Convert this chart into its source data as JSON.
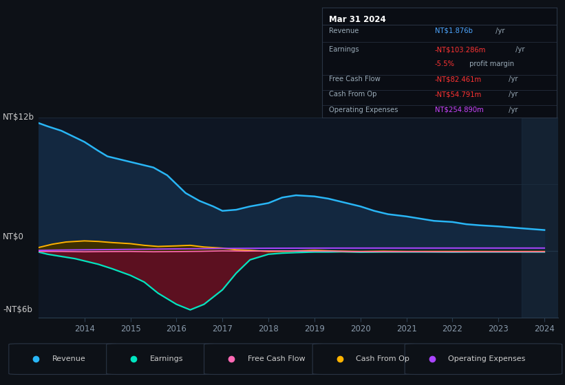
{
  "background_color": "#0d1117",
  "plot_bg_color": "#0e1623",
  "ylabel_top": "NT$12b",
  "ylabel_zero": "NT$0",
  "ylabel_bottom": "-NT$6b",
  "x_ticks": [
    2014,
    2015,
    2016,
    2017,
    2018,
    2019,
    2020,
    2021,
    2022,
    2023,
    2024
  ],
  "x_labels": [
    "2014",
    "2015",
    "2016",
    "2017",
    "2018",
    "2019",
    "2020",
    "2021",
    "2022",
    "2023",
    "2024"
  ],
  "ylim": [
    -6000000000.0,
    12000000000.0
  ],
  "xlim": [
    2013.0,
    2024.3
  ],
  "grid_lines": [
    12000000000.0,
    6000000000.0,
    0,
    -6000000000.0
  ],
  "info_box": {
    "date": "Mar 31 2024",
    "rows": [
      {
        "label": "Revenue",
        "value": "NT$1.876b",
        "suffix": " /yr",
        "color": "#4da6ff"
      },
      {
        "label": "Earnings",
        "value": "-NT$103.286m",
        "suffix": " /yr",
        "color": "#ff3333"
      },
      {
        "label": "",
        "value": "-5.5%",
        "suffix": " profit margin",
        "color": "#ff3333"
      },
      {
        "label": "Free Cash Flow",
        "value": "-NT$82.461m",
        "suffix": " /yr",
        "color": "#ff3333"
      },
      {
        "label": "Cash From Op",
        "value": "-NT$54.791m",
        "suffix": " /yr",
        "color": "#ff3333"
      },
      {
        "label": "Operating Expenses",
        "value": "NT$254.890m",
        "suffix": " /yr",
        "color": "#cc44ff"
      }
    ]
  },
  "series": {
    "revenue": {
      "color": "#29b6f6",
      "fill_color": "#132840",
      "x": [
        2013.0,
        2013.2,
        2013.5,
        2013.8,
        2014.0,
        2014.3,
        2014.5,
        2014.8,
        2015.0,
        2015.2,
        2015.5,
        2015.8,
        2016.0,
        2016.2,
        2016.5,
        2016.8,
        2017.0,
        2017.3,
        2017.6,
        2018.0,
        2018.3,
        2018.6,
        2019.0,
        2019.3,
        2019.6,
        2020.0,
        2020.3,
        2020.6,
        2021.0,
        2021.3,
        2021.6,
        2022.0,
        2022.3,
        2022.6,
        2023.0,
        2023.3,
        2023.6,
        2024.0
      ],
      "y": [
        11500000000.0,
        11200000000.0,
        10800000000.0,
        10200000000.0,
        9800000000.0,
        9000000000.0,
        8500000000.0,
        8200000000.0,
        8000000000.0,
        7800000000.0,
        7500000000.0,
        6800000000.0,
        6000000000.0,
        5200000000.0,
        4500000000.0,
        4000000000.0,
        3600000000.0,
        3700000000.0,
        4000000000.0,
        4300000000.0,
        4800000000.0,
        5000000000.0,
        4900000000.0,
        4700000000.0,
        4400000000.0,
        4000000000.0,
        3600000000.0,
        3300000000.0,
        3100000000.0,
        2900000000.0,
        2700000000.0,
        2600000000.0,
        2400000000.0,
        2300000000.0,
        2200000000.0,
        2100000000.0,
        2000000000.0,
        1876000000.0
      ]
    },
    "earnings": {
      "color": "#00e5c0",
      "fill_neg": "#5c1020",
      "fill_pos": "#404040",
      "x": [
        2013.0,
        2013.2,
        2013.5,
        2013.8,
        2014.0,
        2014.3,
        2014.6,
        2015.0,
        2015.3,
        2015.6,
        2016.0,
        2016.3,
        2016.6,
        2017.0,
        2017.3,
        2017.6,
        2018.0,
        2018.3,
        2018.6,
        2019.0,
        2019.3,
        2019.6,
        2020.0,
        2020.5,
        2021.0,
        2021.5,
        2022.0,
        2022.5,
        2023.0,
        2023.5,
        2024.0
      ],
      "y": [
        -100000000.0,
        -300000000.0,
        -500000000.0,
        -700000000.0,
        -900000000.0,
        -1200000000.0,
        -1600000000.0,
        -2200000000.0,
        -2800000000.0,
        -3800000000.0,
        -4800000000.0,
        -5300000000.0,
        -4800000000.0,
        -3500000000.0,
        -2000000000.0,
        -800000000.0,
        -300000000.0,
        -200000000.0,
        -150000000.0,
        -100000000.0,
        -100000000.0,
        -80000000.0,
        -120000000.0,
        -100000000.0,
        -100000000.0,
        -100000000.0,
        -110000000.0,
        -100000000.0,
        -100000000.0,
        -100000000.0,
        -103286000.0
      ]
    },
    "cash_from_op": {
      "color": "#ffb300",
      "fill_pos": "#3d2f00",
      "fill_neg": "#1a1200",
      "x": [
        2013.0,
        2013.3,
        2013.6,
        2014.0,
        2014.3,
        2014.6,
        2015.0,
        2015.3,
        2015.6,
        2016.0,
        2016.3,
        2016.6,
        2017.0,
        2017.3,
        2017.6,
        2018.0,
        2018.5,
        2019.0,
        2019.5,
        2020.0,
        2020.5,
        2021.0,
        2021.5,
        2022.0,
        2022.5,
        2023.0,
        2023.5,
        2024.0
      ],
      "y": [
        300000000.0,
        600000000.0,
        800000000.0,
        900000000.0,
        850000000.0,
        750000000.0,
        650000000.0,
        500000000.0,
        400000000.0,
        450000000.0,
        500000000.0,
        350000000.0,
        250000000.0,
        100000000.0,
        50000000.0,
        -50000000.0,
        -20000000.0,
        50000000.0,
        -20000000.0,
        -50000000.0,
        -30000000.0,
        -50000000.0,
        -50000000.0,
        -50000000.0,
        -50000000.0,
        -55000000.0,
        -55000000.0,
        -54791000.0
      ]
    },
    "free_cash_flow": {
      "color": "#ff69b4",
      "x": [
        2013.0,
        2013.5,
        2014.0,
        2014.5,
        2015.0,
        2015.5,
        2016.0,
        2016.5,
        2017.0,
        2017.5,
        2018.0,
        2018.5,
        2019.0,
        2019.5,
        2020.0,
        2020.5,
        2021.0,
        2021.5,
        2022.0,
        2022.5,
        2023.0,
        2023.5,
        2024.0
      ],
      "y": [
        -50000000.0,
        -50000000.0,
        -80000000.0,
        -60000000.0,
        -50000000.0,
        -80000000.0,
        -60000000.0,
        -40000000.0,
        0.0,
        -20000000.0,
        0.0,
        -10000000.0,
        -20000000.0,
        -30000000.0,
        -70000000.0,
        -60000000.0,
        -70000000.0,
        -80000000.0,
        -85000000.0,
        -82000000.0,
        -82000000.0,
        -82000000.0,
        -82461000.0
      ]
    },
    "operating_expenses": {
      "color": "#aa44ff",
      "x": [
        2013.0,
        2013.5,
        2014.0,
        2014.5,
        2015.0,
        2015.5,
        2016.0,
        2016.5,
        2017.0,
        2017.5,
        2018.0,
        2018.5,
        2019.0,
        2019.5,
        2020.0,
        2020.5,
        2021.0,
        2021.5,
        2022.0,
        2022.5,
        2023.0,
        2023.5,
        2024.0
      ],
      "y": [
        50000000.0,
        80000000.0,
        100000000.0,
        120000000.0,
        140000000.0,
        160000000.0,
        180000000.0,
        200000000.0,
        220000000.0,
        230000000.0,
        240000000.0,
        245000000.0,
        250000000.0,
        252000000.0,
        253000000.0,
        254000000.0,
        254000000.0,
        254000000.0,
        255000000.0,
        255000000.0,
        255000000.0,
        255000000.0,
        254890000.0
      ]
    }
  },
  "legend": [
    {
      "label": "Revenue",
      "color": "#29b6f6"
    },
    {
      "label": "Earnings",
      "color": "#00e5c0"
    },
    {
      "label": "Free Cash Flow",
      "color": "#ff69b4"
    },
    {
      "label": "Cash From Op",
      "color": "#ffb300"
    },
    {
      "label": "Operating Expenses",
      "color": "#aa44ff"
    }
  ]
}
